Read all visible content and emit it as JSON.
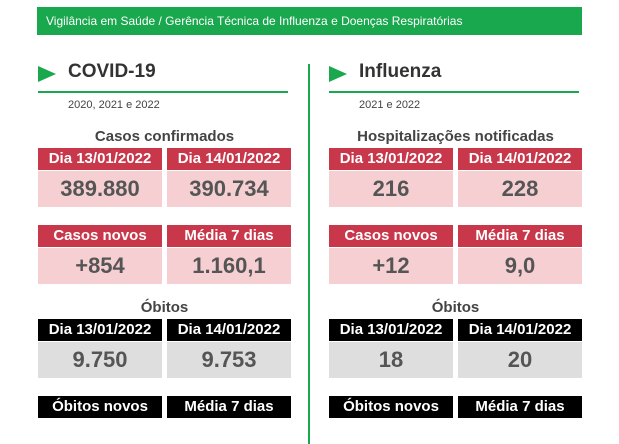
{
  "banner": "Vigilância em Saúde / Gerência Técnica de Influenza e Doenças Respiratórias",
  "colors": {
    "accent_green": "#1aa84f",
    "header_red": "#c8374a",
    "value_pink": "#f6cfd2",
    "header_black": "#000000",
    "value_gray": "#dedede"
  },
  "covid": {
    "title": "COVID-19",
    "subtitle": "2020, 2021 e 2022",
    "cases_title": "Casos confirmados",
    "cases_headers": [
      "Dia 13/01/2022",
      "Dia 14/01/2022"
    ],
    "cases_values": [
      "389.880",
      "390.734"
    ],
    "new_headers": [
      "Casos novos",
      "Média 7 dias"
    ],
    "new_values": [
      "+854",
      "1.160,1"
    ],
    "deaths_title": "Óbitos",
    "deaths_headers": [
      "Dia 13/01/2022",
      "Dia 14/01/2022"
    ],
    "deaths_values": [
      "9.750",
      "9.753"
    ],
    "new_deaths_headers": [
      "Óbitos novos",
      "Média 7 dias"
    ]
  },
  "influenza": {
    "title": "Influenza",
    "subtitle": "2021 e 2022",
    "hosp_title": "Hospitalizações notificadas",
    "hosp_headers": [
      "Dia 13/01/2022",
      "Dia 14/01/2022"
    ],
    "hosp_values": [
      "216",
      "228"
    ],
    "new_headers": [
      "Casos novos",
      "Média 7 dias"
    ],
    "new_values": [
      "+12",
      "9,0"
    ],
    "deaths_title": "Óbitos",
    "deaths_headers": [
      "Dia 13/01/2022",
      "Dia 14/01/2022"
    ],
    "deaths_values": [
      "18",
      "20"
    ],
    "new_deaths_headers": [
      "Óbitos novos",
      "Média 7 dias"
    ]
  }
}
